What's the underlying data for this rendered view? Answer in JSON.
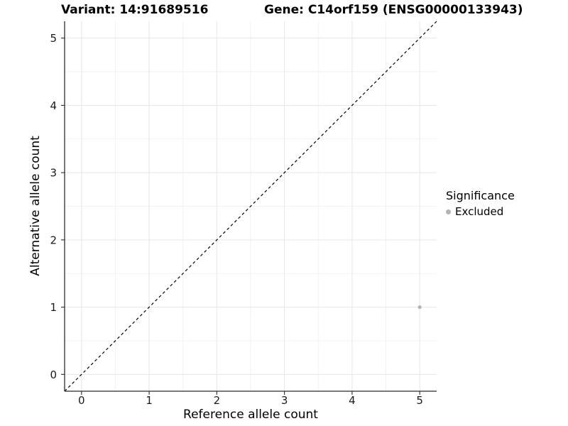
{
  "chart_data": {
    "type": "scatter",
    "titles": {
      "left": "Variant: 14:91689516",
      "right": "Gene: C14orf159 (ENSG00000133943)"
    },
    "xlabel": "Reference allele count",
    "ylabel": "Alternative allele count",
    "xlim": [
      -0.25,
      5.25
    ],
    "ylim": [
      -0.25,
      5.25
    ],
    "xticks": [
      0,
      1,
      2,
      3,
      4,
      5
    ],
    "yticks": [
      0,
      1,
      2,
      3,
      4,
      5
    ],
    "grid": {
      "major": true,
      "minor": true
    },
    "identity_line": {
      "show": true,
      "style": "dashed",
      "comment": "y = x reference line across full panel"
    },
    "series": [
      {
        "name": "Excluded",
        "color": "#b3b3b3",
        "radius": 2.6,
        "points": [
          {
            "x": 5,
            "y": 1
          }
        ]
      }
    ],
    "legend": {
      "title": "Significance",
      "position": "right",
      "items": [
        {
          "label": "Excluded",
          "color": "#b3b3b3"
        }
      ]
    }
  },
  "colors": {
    "background": "#ffffff",
    "axis": "#2b2b2b",
    "grid_major": "#e6e6e6",
    "grid_minor": "#f2f2f2",
    "identity_line": "#000000",
    "tick_text": "#1a1a1a"
  }
}
